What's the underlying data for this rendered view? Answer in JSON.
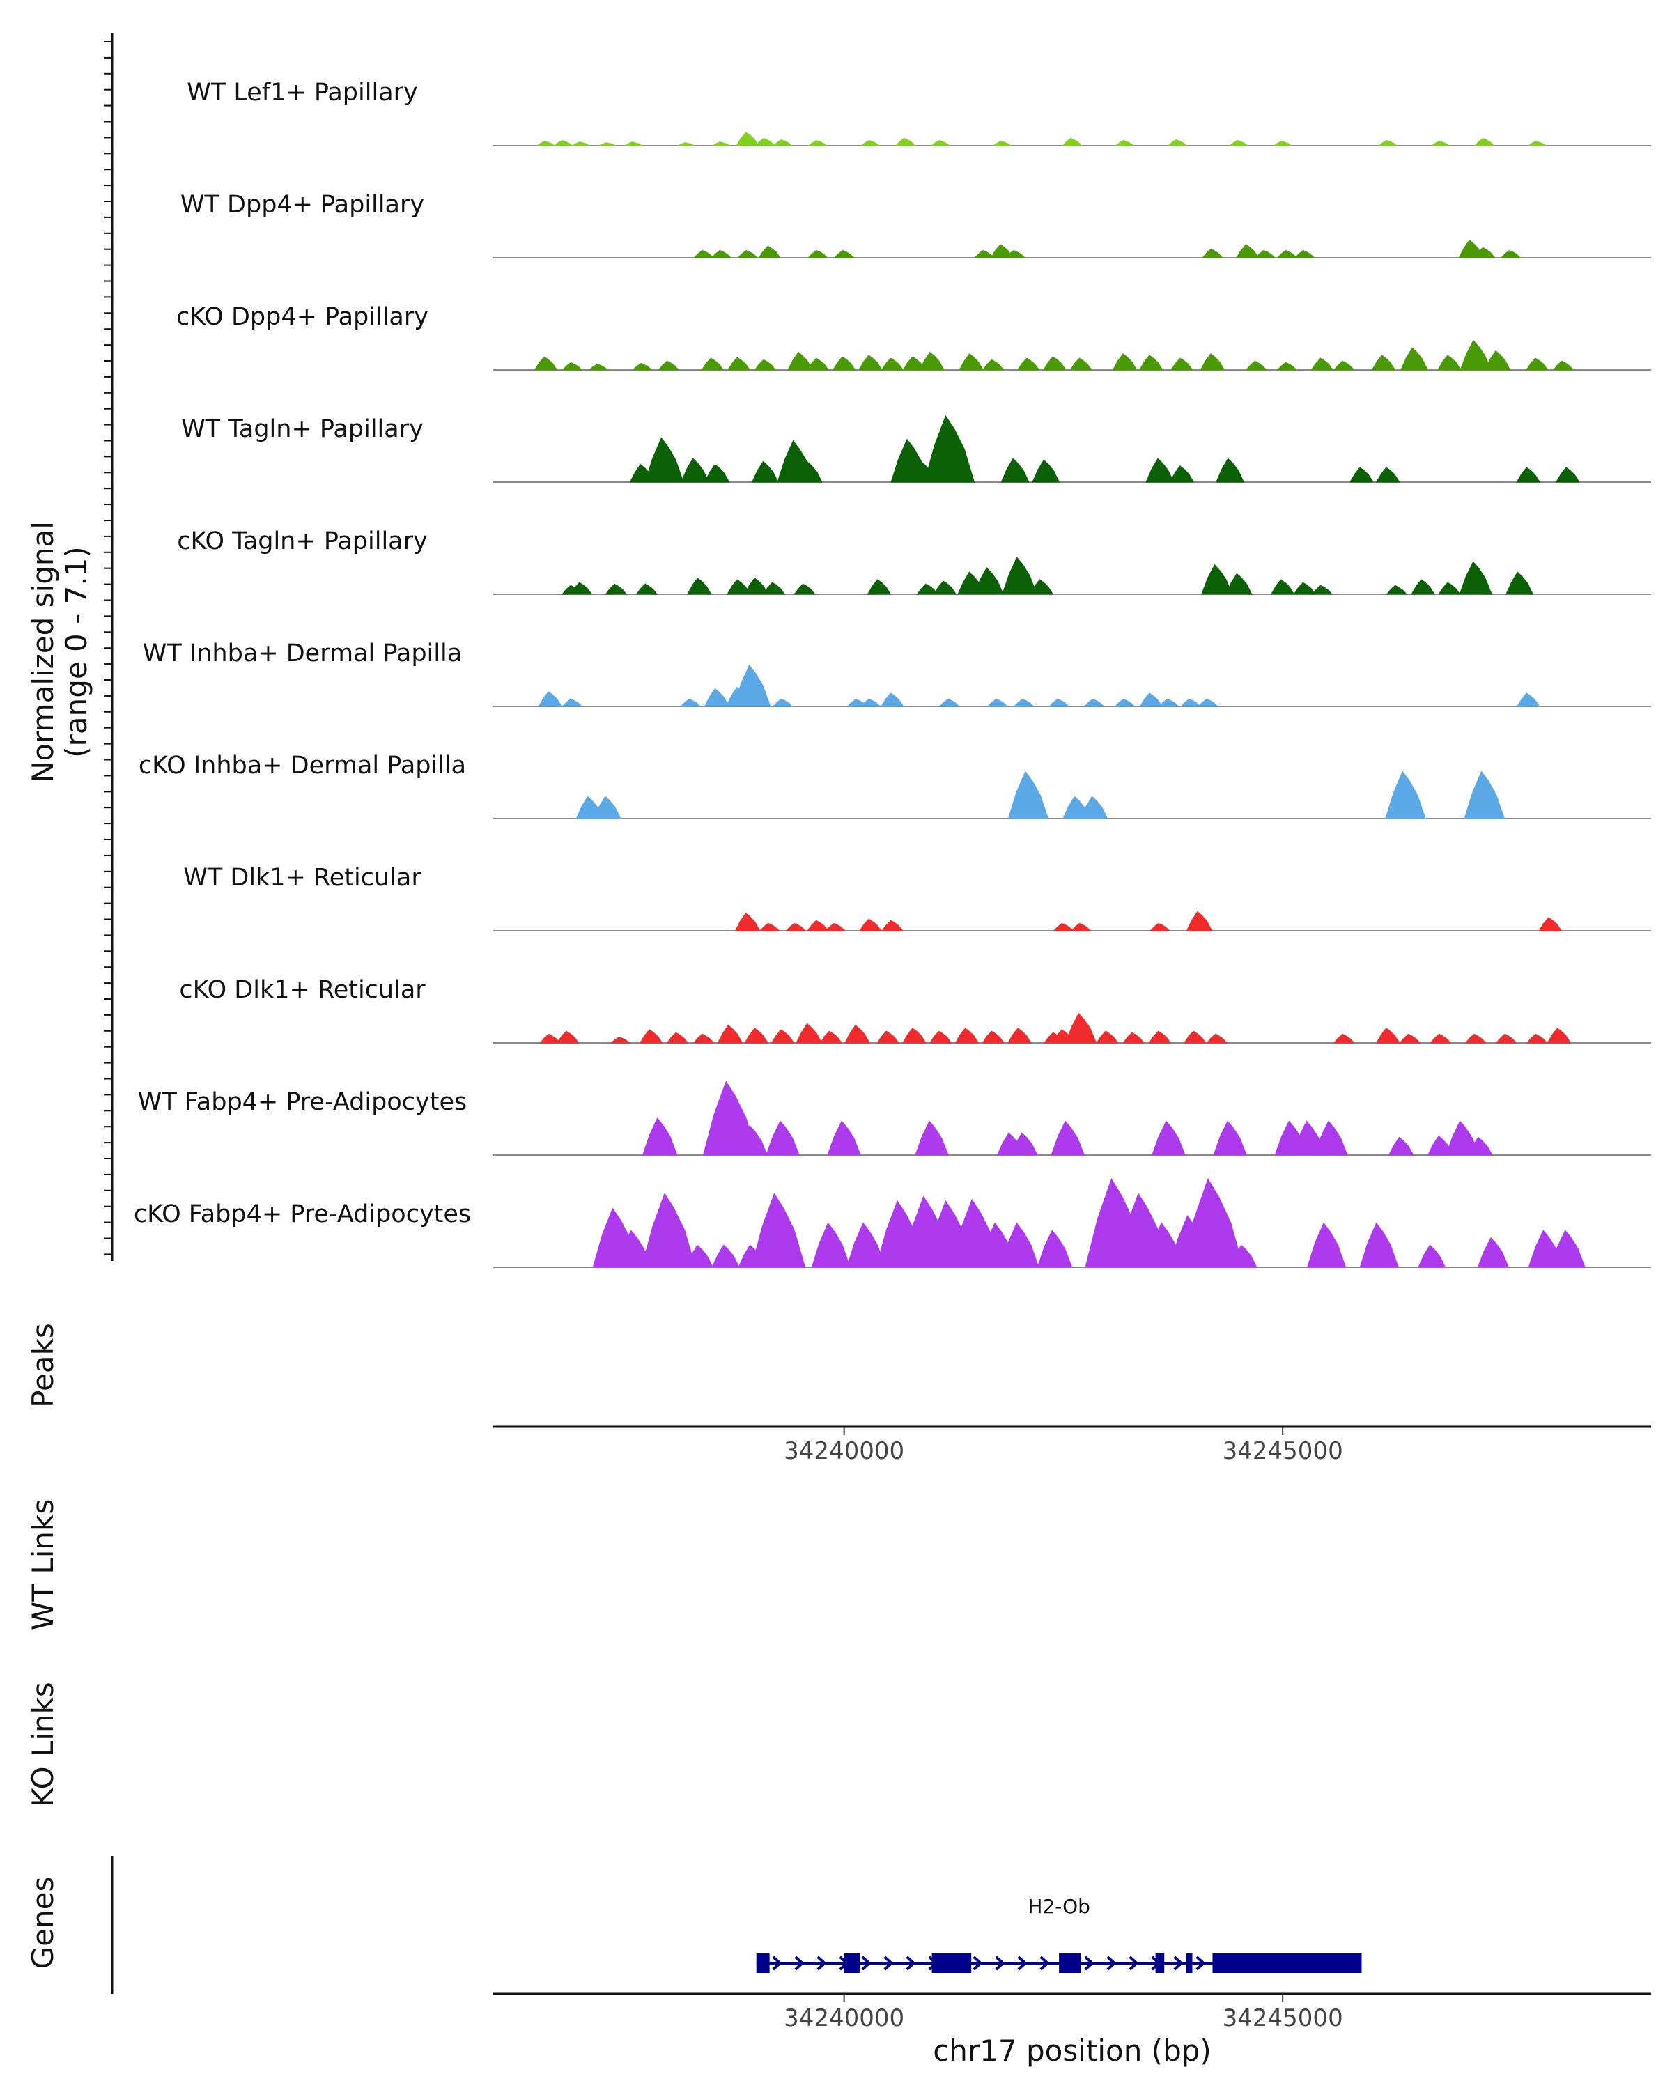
{
  "chart_data": {
    "type": "area",
    "title": "",
    "region": {
      "chromosome": "chr17",
      "start": 34236000,
      "end": 34249200
    },
    "ylabel": {
      "line1": "Normalized signal",
      "line2": "(range 0 - 7.1)"
    },
    "ylim": [
      0,
      7.1
    ],
    "xlabel": "chr17 position (bp)",
    "xticks": [
      {
        "value": 34240000,
        "label": "34240000"
      },
      {
        "value": 34245000,
        "label": "34245000"
      }
    ],
    "tracks": [
      {
        "name": "WT Lef1+ Papillary",
        "color": "#7FD11A",
        "peaks": [
          [
            34236600,
            0.3
          ],
          [
            34236800,
            0.35
          ],
          [
            34237000,
            0.25
          ],
          [
            34237300,
            0.2
          ],
          [
            34237600,
            0.25
          ],
          [
            34238200,
            0.2
          ],
          [
            34238600,
            0.25
          ],
          [
            34238900,
            0.9
          ],
          [
            34239100,
            0.5
          ],
          [
            34239300,
            0.4
          ],
          [
            34239700,
            0.35
          ],
          [
            34240300,
            0.35
          ],
          [
            34240700,
            0.5
          ],
          [
            34241100,
            0.35
          ],
          [
            34241800,
            0.3
          ],
          [
            34242600,
            0.5
          ],
          [
            34243200,
            0.35
          ],
          [
            34243800,
            0.4
          ],
          [
            34244500,
            0.35
          ],
          [
            34245000,
            0.3
          ],
          [
            34246200,
            0.35
          ],
          [
            34246800,
            0.3
          ],
          [
            34247300,
            0.5
          ],
          [
            34247900,
            0.3
          ]
        ]
      },
      {
        "name": "WT Dpp4+ Papillary",
        "color": "#4A9A06",
        "peaks": [
          [
            34238400,
            0.5
          ],
          [
            34238600,
            0.5
          ],
          [
            34238900,
            0.5
          ],
          [
            34239150,
            0.8
          ],
          [
            34239700,
            0.5
          ],
          [
            34240000,
            0.5
          ],
          [
            34241600,
            0.5
          ],
          [
            34241800,
            0.9
          ],
          [
            34241950,
            0.5
          ],
          [
            34244200,
            0.6
          ],
          [
            34244600,
            0.9
          ],
          [
            34244800,
            0.5
          ],
          [
            34245050,
            0.5
          ],
          [
            34245250,
            0.5
          ],
          [
            34247150,
            1.2
          ],
          [
            34247300,
            0.7
          ],
          [
            34247600,
            0.5
          ]
        ]
      },
      {
        "name": "cKO Dpp4+ Papillary",
        "color": "#4A9A06",
        "peaks": [
          [
            34236600,
            0.9
          ],
          [
            34236900,
            0.5
          ],
          [
            34237200,
            0.4
          ],
          [
            34237700,
            0.45
          ],
          [
            34238000,
            0.6
          ],
          [
            34238500,
            0.8
          ],
          [
            34238800,
            0.85
          ],
          [
            34239100,
            0.7
          ],
          [
            34239500,
            1.2
          ],
          [
            34239700,
            0.8
          ],
          [
            34240000,
            0.9
          ],
          [
            34240300,
            1.0
          ],
          [
            34240550,
            0.8
          ],
          [
            34240800,
            0.9
          ],
          [
            34241000,
            1.2
          ],
          [
            34241450,
            1.1
          ],
          [
            34241700,
            0.7
          ],
          [
            34242100,
            0.8
          ],
          [
            34242400,
            0.9
          ],
          [
            34242700,
            0.8
          ],
          [
            34243200,
            1.1
          ],
          [
            34243500,
            1.0
          ],
          [
            34243850,
            0.8
          ],
          [
            34244200,
            1.1
          ],
          [
            34244700,
            0.6
          ],
          [
            34245050,
            0.5
          ],
          [
            34245450,
            0.8
          ],
          [
            34245700,
            0.6
          ],
          [
            34246150,
            1.0
          ],
          [
            34246500,
            1.5
          ],
          [
            34246900,
            1.0
          ],
          [
            34247200,
            2.0
          ],
          [
            34247450,
            1.3
          ],
          [
            34247900,
            0.8
          ],
          [
            34248200,
            0.6
          ]
        ]
      },
      {
        "name": "WT Tagln+ Papillary",
        "color": "#0C6106",
        "peaks": [
          [
            34237700,
            1.2
          ],
          [
            34237950,
            3.0
          ],
          [
            34238300,
            1.6
          ],
          [
            34238550,
            1.2
          ],
          [
            34239100,
            1.4
          ],
          [
            34239450,
            2.8
          ],
          [
            34239600,
            1.4
          ],
          [
            34240750,
            2.9
          ],
          [
            34240900,
            1.4
          ],
          [
            34241200,
            4.5
          ],
          [
            34241950,
            1.6
          ],
          [
            34242300,
            1.5
          ],
          [
            34243600,
            1.6
          ],
          [
            34243850,
            1.1
          ],
          [
            34244400,
            1.6
          ],
          [
            34245900,
            1.0
          ],
          [
            34246200,
            1.0
          ],
          [
            34247800,
            1.0
          ],
          [
            34248250,
            1.0
          ]
        ]
      },
      {
        "name": "cKO Tagln+ Papillary",
        "color": "#0C6106",
        "peaks": [
          [
            34236900,
            0.6
          ],
          [
            34237000,
            0.8
          ],
          [
            34237400,
            0.7
          ],
          [
            34237750,
            0.7
          ],
          [
            34238350,
            1.1
          ],
          [
            34238800,
            1.0
          ],
          [
            34239000,
            1.1
          ],
          [
            34239200,
            0.8
          ],
          [
            34239550,
            0.7
          ],
          [
            34240400,
            1.0
          ],
          [
            34240950,
            0.7
          ],
          [
            34241150,
            0.9
          ],
          [
            34241450,
            1.5
          ],
          [
            34241650,
            1.8
          ],
          [
            34242000,
            2.5
          ],
          [
            34242250,
            1.0
          ],
          [
            34244250,
            2.0
          ],
          [
            34244500,
            1.4
          ],
          [
            34245000,
            1.0
          ],
          [
            34245250,
            0.8
          ],
          [
            34245450,
            0.6
          ],
          [
            34246300,
            0.6
          ],
          [
            34246600,
            1.0
          ],
          [
            34246900,
            0.8
          ],
          [
            34247200,
            2.2
          ],
          [
            34247700,
            1.5
          ]
        ]
      },
      {
        "name": "WT Inhba+ Dermal Papilla",
        "color": "#5AA8E6",
        "peaks": [
          [
            34236650,
            1.0
          ],
          [
            34236900,
            0.5
          ],
          [
            34238250,
            0.5
          ],
          [
            34238550,
            1.2
          ],
          [
            34238800,
            1.3
          ],
          [
            34238950,
            2.8
          ],
          [
            34239300,
            0.5
          ],
          [
            34240150,
            0.5
          ],
          [
            34240300,
            0.5
          ],
          [
            34240550,
            0.9
          ],
          [
            34241200,
            0.5
          ],
          [
            34241750,
            0.5
          ],
          [
            34242050,
            0.5
          ],
          [
            34242450,
            0.5
          ],
          [
            34242850,
            0.5
          ],
          [
            34243200,
            0.5
          ],
          [
            34243500,
            0.9
          ],
          [
            34243700,
            0.5
          ],
          [
            34243950,
            0.5
          ],
          [
            34244150,
            0.5
          ],
          [
            34247800,
            0.9
          ]
        ]
      },
      {
        "name": "cKO Inhba+ Dermal Papilla",
        "color": "#5AA8E6",
        "peaks": [
          [
            34237100,
            1.5
          ],
          [
            34237300,
            1.5
          ],
          [
            34242100,
            3.2
          ],
          [
            34242650,
            1.5
          ],
          [
            34242850,
            1.5
          ],
          [
            34246400,
            3.2
          ],
          [
            34247300,
            3.2
          ]
        ]
      },
      {
        "name": "WT Dlk1+ Reticular",
        "color": "#F02B2B",
        "peaks": [
          [
            34238900,
            1.2
          ],
          [
            34239150,
            0.5
          ],
          [
            34239450,
            0.5
          ],
          [
            34239700,
            0.7
          ],
          [
            34239900,
            0.5
          ],
          [
            34240300,
            0.8
          ],
          [
            34240550,
            0.7
          ],
          [
            34242500,
            0.5
          ],
          [
            34242700,
            0.5
          ],
          [
            34243600,
            0.5
          ],
          [
            34244050,
            1.3
          ],
          [
            34248050,
            0.9
          ]
        ]
      },
      {
        "name": "cKO Dlk1+ Reticular",
        "color": "#F02B2B",
        "peaks": [
          [
            34236650,
            0.6
          ],
          [
            34236850,
            0.8
          ],
          [
            34237450,
            0.4
          ],
          [
            34237800,
            0.9
          ],
          [
            34238100,
            0.7
          ],
          [
            34238400,
            0.6
          ],
          [
            34238700,
            1.2
          ],
          [
            34239000,
            1.0
          ],
          [
            34239300,
            0.9
          ],
          [
            34239600,
            1.3
          ],
          [
            34239850,
            0.8
          ],
          [
            34240150,
            1.2
          ],
          [
            34240500,
            0.8
          ],
          [
            34240800,
            1.0
          ],
          [
            34241100,
            0.8
          ],
          [
            34241400,
            1.0
          ],
          [
            34241700,
            0.8
          ],
          [
            34242000,
            1.0
          ],
          [
            34242400,
            0.7
          ],
          [
            34242500,
            0.9
          ],
          [
            34242700,
            2.0
          ],
          [
            34243000,
            0.8
          ],
          [
            34243300,
            0.7
          ],
          [
            34243600,
            0.8
          ],
          [
            34244000,
            0.8
          ],
          [
            34244250,
            0.6
          ],
          [
            34245700,
            0.6
          ],
          [
            34246200,
            1.0
          ],
          [
            34246450,
            0.6
          ],
          [
            34246800,
            0.6
          ],
          [
            34247200,
            0.6
          ],
          [
            34247550,
            0.6
          ],
          [
            34247900,
            0.6
          ],
          [
            34248150,
            1.0
          ]
        ]
      },
      {
        "name": "WT Fabp4+ Pre-Adipocytes",
        "color": "#AE3AEE",
        "peaks": [
          [
            34237900,
            2.5
          ],
          [
            34238700,
            5.0
          ],
          [
            34238950,
            2.0
          ],
          [
            34239300,
            2.3
          ],
          [
            34240000,
            2.3
          ],
          [
            34241000,
            2.3
          ],
          [
            34241900,
            1.5
          ],
          [
            34242050,
            1.5
          ],
          [
            34242550,
            2.3
          ],
          [
            34243700,
            2.3
          ],
          [
            34244400,
            2.3
          ],
          [
            34245100,
            2.3
          ],
          [
            34245300,
            2.3
          ],
          [
            34245550,
            2.3
          ],
          [
            34246350,
            1.2
          ],
          [
            34246800,
            1.3
          ],
          [
            34247050,
            2.3
          ],
          [
            34247250,
            1.2
          ]
        ]
      },
      {
        "name": "cKO Fabp4+ Pre-Adipocytes",
        "color": "#AE3AEE",
        "peaks": [
          [
            34237400,
            4.0
          ],
          [
            34237600,
            2.5
          ],
          [
            34237800,
            1.5
          ],
          [
            34238000,
            5.0
          ],
          [
            34238350,
            1.5
          ],
          [
            34238650,
            1.5
          ],
          [
            34238950,
            1.5
          ],
          [
            34239250,
            5.0
          ],
          [
            34239850,
            3.0
          ],
          [
            34240250,
            3.0
          ],
          [
            34240650,
            4.5
          ],
          [
            34240950,
            4.8
          ],
          [
            34241200,
            4.5
          ],
          [
            34241500,
            4.6
          ],
          [
            34241750,
            3.0
          ],
          [
            34242000,
            3.0
          ],
          [
            34242400,
            2.5
          ],
          [
            34243100,
            6.0
          ],
          [
            34243400,
            5.0
          ],
          [
            34243650,
            3.0
          ],
          [
            34243950,
            3.5
          ],
          [
            34244200,
            6.0
          ],
          [
            34244550,
            1.5
          ],
          [
            34245500,
            3.0
          ],
          [
            34246100,
            3.0
          ],
          [
            34246700,
            1.5
          ],
          [
            34247400,
            2.0
          ],
          [
            34248000,
            2.5
          ],
          [
            34248250,
            2.5
          ]
        ]
      }
    ],
    "side_labels": {
      "peaks": "Peaks",
      "wt_links": "WT Links",
      "ko_links": "KO Links",
      "genes": "Genes"
    },
    "gene": {
      "name": "H2-Ob",
      "start": 34239000,
      "end": 34245900,
      "strand": "+",
      "exons": [
        [
          34239000,
          34239150
        ],
        [
          34240000,
          34240180
        ],
        [
          34241000,
          34241450
        ],
        [
          34242450,
          34242700
        ],
        [
          34243550,
          34243650
        ],
        [
          34243900,
          34243970
        ],
        [
          34244200,
          34245900
        ]
      ]
    }
  }
}
